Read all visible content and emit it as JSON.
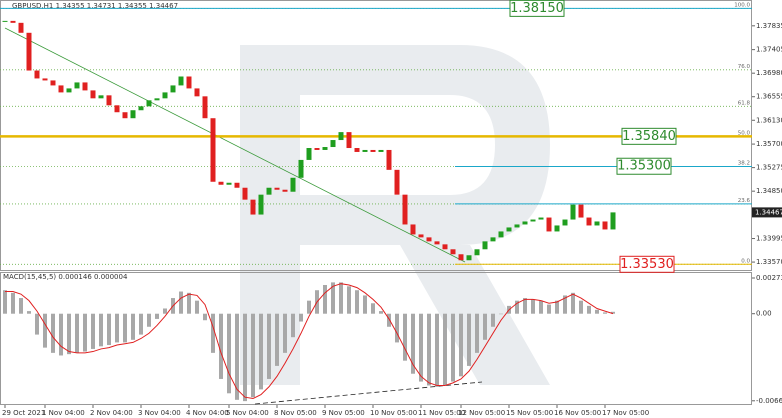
{
  "chart_data": [
    {
      "type": "candlestick",
      "title": "GBPUSD,H1 1.34355 1.34731 1.34355 1.34467",
      "values": [
        1.37924,
        1.37889,
        1.37709,
        1.37028,
        1.36885,
        1.36849,
        1.36759,
        1.36633,
        1.36705,
        1.36813,
        1.36669,
        1.36526,
        1.3658,
        1.364,
        1.36275,
        1.36167,
        1.36311,
        1.36382,
        1.3649,
        1.36526,
        1.36633,
        1.36759,
        1.3692,
        1.36705,
        1.36562,
        1.36167,
        1.3502,
        1.34966,
        1.35002,
        1.34912,
        1.34697,
        1.34428,
        1.34787,
        1.34912,
        1.34876,
        1.3484,
        1.35092,
        1.35414,
        1.35629,
        1.35594,
        1.35647,
        1.35773,
        1.35916,
        1.35629,
        1.35558,
        1.35594,
        1.35558,
        1.35594,
        1.35235,
        1.34787,
        1.34249,
        1.34069,
        1.34016,
        1.33944,
        1.3389,
        1.33801,
        1.33711,
        1.33603,
        1.33693,
        1.33801,
        1.33944,
        1.34016,
        1.34123,
        1.34195,
        1.34249,
        1.34303,
        1.34338,
        1.34374,
        1.34123,
        1.34231,
        1.34338,
        1.34607,
        1.34374,
        1.34231,
        1.34303,
        1.34159,
        1.34467
      ],
      "up_color": "#1f9e1f",
      "down_color": "#e02020",
      "ylim": [
        1.33427,
        1.38283
      ],
      "yticks": [
        1.37835,
        1.37405,
        {
          "value": 1.3698,
          "label": "1.36980"
        },
        1.36555,
        {
          "value": 1.3613,
          "label": "1.36130"
        },
        {
          "value": 1.357,
          "label": "1.35700"
        },
        1.35275,
        {
          "value": 1.3485,
          "label": "1.34850"
        },
        1.33995,
        {
          "value": 1.3357,
          "label": "1.33570"
        }
      ],
      "current_price": 1.34467,
      "fib_levels": [
        {
          "value": 1.3815,
          "label": "100.0",
          "color": "#1aa7c9"
        },
        {
          "value": 1.37041,
          "label": "76.0",
          "color": "#6ab04c"
        },
        {
          "value": 1.36382,
          "label": "61.8",
          "color": "#6ab04c"
        },
        {
          "value": 1.3584,
          "label": "50.0",
          "color": "#e6b800"
        },
        {
          "value": 1.35295,
          "label": "38.2",
          "color": "#1aa7c9"
        },
        {
          "value": 1.3462,
          "label": "23.6",
          "color": "#1aa7c9"
        },
        {
          "value": 1.3353,
          "label": "0.0",
          "color": "#e6b800"
        }
      ],
      "price_labels": [
        {
          "value": 1.3815,
          "label": "1.38150",
          "color": "#2e8b2e"
        },
        {
          "value": 1.3584,
          "label": "1.35840",
          "color": "#2e8b2e"
        },
        {
          "value": 1.353,
          "label": "1.35300",
          "color": "#2e8b2e"
        },
        {
          "value": 1.3353,
          "label": "1.33530",
          "color": "#e02020"
        }
      ]
    },
    {
      "type": "macd",
      "title": "MACD(15,45,5) 0.000146 0.000004",
      "categories": [
        "29 Oct 2021",
        null,
        null,
        null,
        null,
        "1 Nov 04:00",
        null,
        null,
        null,
        null,
        null,
        "2 Nov 04:00",
        null,
        null,
        null,
        null,
        null,
        "3 Nov 04:00",
        null,
        null,
        null,
        null,
        null,
        "4 Nov 04:00",
        null,
        null,
        null,
        null,
        "5 Nov 04:00",
        null,
        null,
        null,
        null,
        null,
        "8 Nov 05:00",
        null,
        null,
        null,
        null,
        null,
        "9 Nov 05:00",
        null,
        null,
        null,
        null,
        null,
        "10 Nov 05:00",
        null,
        null,
        null,
        null,
        null,
        "11 Nov 05:00",
        null,
        null,
        null,
        null,
        "12 Nov 05:00",
        null,
        null,
        null,
        null,
        null,
        "15 Nov 05:00",
        null,
        null,
        null,
        null,
        null,
        "16 Nov 05:00",
        null,
        null,
        null,
        null,
        null,
        "17 Nov 05:00",
        null
      ],
      "series": [
        {
          "color": "#a8a8a8",
          "values": [
            0.0018,
            0.0016,
            0.0012,
            0.0002,
            -0.0016,
            -0.0026,
            -0.003,
            -0.0032,
            -0.0031,
            -0.003,
            -0.0029,
            -0.0027,
            -0.0025,
            -0.0024,
            -0.0022,
            -0.0022,
            -0.002,
            -0.0016,
            -0.001,
            -0.0004,
            0.0004,
            0.0012,
            0.0017,
            0.0016,
            0.001,
            -0.0005,
            -0.003,
            -0.005,
            -0.0061,
            -0.0066,
            -0.0067,
            -0.0064,
            -0.0058,
            -0.005,
            -0.004,
            -0.003,
            -0.0018,
            -0.0006,
            0.001,
            0.0018,
            0.0022,
            0.0024,
            0.0024,
            0.0021,
            0.0018,
            0.0014,
            0.0008,
            0.0002,
            -0.001,
            -0.0022,
            -0.0036,
            -0.0046,
            -0.0052,
            -0.0055,
            -0.0056,
            -0.0055,
            -0.0052,
            -0.0048,
            -0.004,
            -0.003,
            -0.002,
            -0.001,
            0,
            0.0006,
            0.001,
            0.0012,
            0.0011,
            0.001,
            0.0007,
            0.001,
            0.0014,
            0.0016,
            0.001,
            0.0006,
            0.0003,
            0.0001,
            0.000146
          ]
        },
        {
          "color": "#e02020",
          "values": [
            0.0017,
            0.0017,
            0.0015,
            0.001,
            0.0002,
            -0.0008,
            -0.0018,
            -0.0025,
            -0.0029,
            -0.003,
            -0.003,
            -0.0029,
            -0.0027,
            -0.0026,
            -0.0024,
            -0.0023,
            -0.0022,
            -0.0019,
            -0.0015,
            -0.0009,
            -0.0002,
            0.0006,
            0.0012,
            0.0015,
            0.0014,
            0.0007,
            -0.001,
            -0.003,
            -0.0046,
            -0.0058,
            -0.0064,
            -0.0065,
            -0.0062,
            -0.0056,
            -0.0048,
            -0.0038,
            -0.0027,
            -0.0015,
            -0.0002,
            0.0009,
            0.0016,
            0.0021,
            0.0023,
            0.0022,
            0.002,
            0.0016,
            0.0011,
            0.0005,
            -0.0004,
            -0.0015,
            -0.0027,
            -0.0039,
            -0.0048,
            -0.0053,
            -0.0055,
            -0.0055,
            -0.0053,
            -0.005,
            -0.0044,
            -0.0035,
            -0.0025,
            -0.0015,
            -0.0005,
            0.0003,
            0.0008,
            0.0011,
            0.0011,
            0.001,
            0.0008,
            0.0009,
            0.0012,
            0.0015,
            0.0012,
            0.0008,
            0.0004,
            0.0002,
            4e-06
          ]
        }
      ],
      "ylim": [
        -0.00692,
        0.00312
      ],
      "yticks": [
        0.002736,
        {
          "value": 0,
          "label": "0.00"
        },
        -0.006674
      ]
    }
  ]
}
